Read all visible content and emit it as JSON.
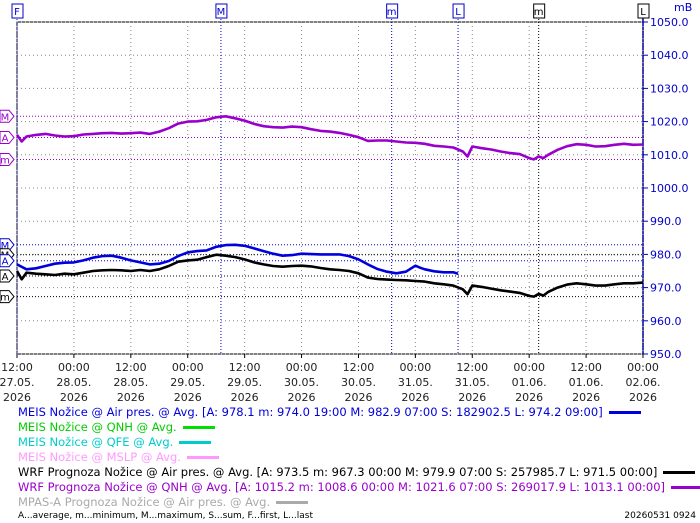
{
  "chart_data": {
    "type": "line",
    "unit_label": "mB",
    "ylim": [
      950,
      1050
    ],
    "yticks": [
      "950.0",
      "960.0",
      "970.0",
      "980.0",
      "990.0",
      "1000.0",
      "1010.0",
      "1020.0",
      "1030.0",
      "1040.0",
      "1050.0"
    ],
    "xticks": [
      {
        "t": 0,
        "time": "12:00",
        "date": "27.05."
      },
      {
        "t": 12,
        "time": "00:00",
        "date": "28.05."
      },
      {
        "t": 24,
        "time": "12:00",
        "date": "28.05."
      },
      {
        "t": 36,
        "time": "00:00",
        "date": "29.05."
      },
      {
        "t": 48,
        "time": "12:00",
        "date": "29.05."
      },
      {
        "t": 60,
        "time": "00:00",
        "date": "30.05."
      },
      {
        "t": 72,
        "time": "12:00",
        "date": "30.05."
      },
      {
        "t": 84,
        "time": "00:00",
        "date": "31.05."
      },
      {
        "t": 96,
        "time": "12:00",
        "date": "31.05."
      },
      {
        "t": 108,
        "time": "00:00",
        "date": "01.06."
      },
      {
        "t": 120,
        "time": "12:00",
        "date": "01.06."
      },
      {
        "t": 132,
        "time": "00:00",
        "date": "02.06."
      }
    ],
    "xtick_year": "2026",
    "top_markers": [
      {
        "label": "F",
        "t": 0,
        "color": "#0000cc"
      },
      {
        "label": "M",
        "t": 43,
        "color": "#0000cc"
      },
      {
        "label": "m",
        "t": 79,
        "color": "#0000cc"
      },
      {
        "label": "L",
        "t": 93,
        "color": "#0000cc"
      },
      {
        "label": "m",
        "t": 110,
        "color": "#000000"
      },
      {
        "label": "L",
        "t": 132,
        "color": "#000000"
      }
    ],
    "left_markers": [
      {
        "label": "M",
        "value": 1021.6,
        "color": "#9900cc"
      },
      {
        "label": "A",
        "value": 1015.2,
        "color": "#9900cc"
      },
      {
        "label": "m",
        "value": 1008.6,
        "color": "#9900cc"
      },
      {
        "label": "M",
        "value": 982.9,
        "color": "#0000cc"
      },
      {
        "label": "M",
        "value": 979.9,
        "color": "#000000"
      },
      {
        "label": "A",
        "value": 978.1,
        "color": "#0000cc"
      },
      {
        "label": "A",
        "value": 973.5,
        "color": "#000000"
      },
      {
        "label": "m",
        "value": 967.3,
        "color": "#000000"
      }
    ],
    "series": [
      {
        "name": "MEIS Nožice @ Air pres. @ Avg.",
        "color": "#0000dd",
        "points": [
          [
            0,
            977.0
          ],
          [
            2,
            975.5
          ],
          [
            4,
            975.8
          ],
          [
            6,
            976.5
          ],
          [
            8,
            977.2
          ],
          [
            10,
            977.5
          ],
          [
            12,
            977.6
          ],
          [
            14,
            978.2
          ],
          [
            16,
            979.0
          ],
          [
            18,
            979.5
          ],
          [
            20,
            979.6
          ],
          [
            22,
            979.0
          ],
          [
            24,
            978.2
          ],
          [
            26,
            977.6
          ],
          [
            28,
            977.0
          ],
          [
            30,
            977.2
          ],
          [
            32,
            978.0
          ],
          [
            34,
            979.5
          ],
          [
            36,
            980.6
          ],
          [
            38,
            981.0
          ],
          [
            40,
            981.2
          ],
          [
            42,
            982.3
          ],
          [
            44,
            982.8
          ],
          [
            46,
            982.9
          ],
          [
            48,
            982.6
          ],
          [
            50,
            981.8
          ],
          [
            52,
            981.0
          ],
          [
            54,
            980.2
          ],
          [
            56,
            979.6
          ],
          [
            58,
            979.8
          ],
          [
            60,
            980.2
          ],
          [
            62,
            980.1
          ],
          [
            64,
            980.0
          ],
          [
            66,
            980.0
          ],
          [
            68,
            980.0
          ],
          [
            70,
            979.5
          ],
          [
            72,
            978.5
          ],
          [
            74,
            977.0
          ],
          [
            76,
            975.6
          ],
          [
            78,
            974.8
          ],
          [
            80,
            974.3
          ],
          [
            82,
            974.8
          ],
          [
            84,
            976.6
          ],
          [
            85,
            976.0
          ],
          [
            86,
            975.5
          ],
          [
            88,
            974.9
          ],
          [
            90,
            974.6
          ],
          [
            92,
            974.6
          ],
          [
            93,
            974.2
          ]
        ]
      },
      {
        "name": "MEIS Nožice @ QNH @ Avg.",
        "color": "#00cc00",
        "points": []
      },
      {
        "name": "MEIS Nožice @ QFE @ Avg.",
        "color": "#00cccc",
        "points": []
      },
      {
        "name": "MEIS Nožice @ MSLP @ Avg.",
        "color": "#ff99ff",
        "points": []
      },
      {
        "name": "WRF Prognoza Nožice @ Air pres. @ Avg.",
        "color": "#000000",
        "points": [
          [
            0,
            975.0
          ],
          [
            1,
            972.5
          ],
          [
            2,
            974.5
          ],
          [
            4,
            974.2
          ],
          [
            6,
            974.0
          ],
          [
            8,
            973.8
          ],
          [
            10,
            974.2
          ],
          [
            12,
            974.0
          ],
          [
            14,
            974.5
          ],
          [
            16,
            975.0
          ],
          [
            18,
            975.2
          ],
          [
            20,
            975.3
          ],
          [
            22,
            975.2
          ],
          [
            24,
            975.0
          ],
          [
            26,
            975.3
          ],
          [
            28,
            975.0
          ],
          [
            30,
            975.5
          ],
          [
            32,
            976.5
          ],
          [
            34,
            977.8
          ],
          [
            36,
            978.2
          ],
          [
            38,
            978.4
          ],
          [
            40,
            979.2
          ],
          [
            42,
            979.9
          ],
          [
            44,
            979.6
          ],
          [
            46,
            979.2
          ],
          [
            48,
            978.5
          ],
          [
            50,
            977.6
          ],
          [
            52,
            977.0
          ],
          [
            54,
            976.5
          ],
          [
            56,
            976.3
          ],
          [
            58,
            976.5
          ],
          [
            60,
            976.6
          ],
          [
            62,
            976.4
          ],
          [
            64,
            975.9
          ],
          [
            66,
            975.5
          ],
          [
            68,
            975.3
          ],
          [
            70,
            975.0
          ],
          [
            72,
            974.3
          ],
          [
            74,
            973.0
          ],
          [
            76,
            972.6
          ],
          [
            78,
            972.4
          ],
          [
            80,
            972.3
          ],
          [
            82,
            972.2
          ],
          [
            84,
            972.0
          ],
          [
            86,
            971.8
          ],
          [
            88,
            971.3
          ],
          [
            90,
            971.0
          ],
          [
            92,
            970.6
          ],
          [
            94,
            969.5
          ],
          [
            95,
            968.0
          ],
          [
            96,
            970.6
          ],
          [
            98,
            970.2
          ],
          [
            100,
            969.7
          ],
          [
            102,
            969.2
          ],
          [
            104,
            968.8
          ],
          [
            106,
            968.4
          ],
          [
            108,
            967.5
          ],
          [
            109,
            967.3
          ],
          [
            110,
            968.1
          ],
          [
            111,
            967.6
          ],
          [
            112,
            968.7
          ],
          [
            114,
            970.0
          ],
          [
            116,
            970.9
          ],
          [
            118,
            971.3
          ],
          [
            120,
            971.0
          ],
          [
            122,
            970.6
          ],
          [
            124,
            970.6
          ],
          [
            126,
            971.0
          ],
          [
            128,
            971.3
          ],
          [
            130,
            971.3
          ],
          [
            132,
            971.5
          ]
        ]
      },
      {
        "name": "WRF Prognoza Nožice @ QNH @ Avg.",
        "color": "#9900cc",
        "points": [
          [
            0,
            1016.0
          ],
          [
            1,
            1014.0
          ],
          [
            2,
            1015.5
          ],
          [
            4,
            1016.0
          ],
          [
            6,
            1016.3
          ],
          [
            8,
            1015.8
          ],
          [
            10,
            1015.5
          ],
          [
            12,
            1015.6
          ],
          [
            14,
            1016.1
          ],
          [
            16,
            1016.3
          ],
          [
            18,
            1016.5
          ],
          [
            20,
            1016.6
          ],
          [
            22,
            1016.4
          ],
          [
            24,
            1016.5
          ],
          [
            26,
            1016.7
          ],
          [
            28,
            1016.3
          ],
          [
            30,
            1017.0
          ],
          [
            32,
            1018.0
          ],
          [
            34,
            1019.4
          ],
          [
            36,
            1020.0
          ],
          [
            38,
            1020.1
          ],
          [
            40,
            1020.5
          ],
          [
            42,
            1021.3
          ],
          [
            44,
            1021.6
          ],
          [
            46,
            1021.0
          ],
          [
            48,
            1020.3
          ],
          [
            50,
            1019.3
          ],
          [
            52,
            1018.6
          ],
          [
            54,
            1018.3
          ],
          [
            56,
            1018.2
          ],
          [
            58,
            1018.5
          ],
          [
            60,
            1018.3
          ],
          [
            62,
            1017.7
          ],
          [
            64,
            1017.2
          ],
          [
            66,
            1017.0
          ],
          [
            68,
            1016.6
          ],
          [
            70,
            1016.0
          ],
          [
            72,
            1015.3
          ],
          [
            74,
            1014.2
          ],
          [
            76,
            1014.3
          ],
          [
            78,
            1014.3
          ],
          [
            80,
            1014.0
          ],
          [
            82,
            1013.7
          ],
          [
            84,
            1013.6
          ],
          [
            86,
            1013.3
          ],
          [
            88,
            1012.7
          ],
          [
            90,
            1012.5
          ],
          [
            92,
            1012.2
          ],
          [
            94,
            1011.0
          ],
          [
            95,
            1009.5
          ],
          [
            96,
            1012.5
          ],
          [
            98,
            1012.0
          ],
          [
            100,
            1011.6
          ],
          [
            102,
            1011.0
          ],
          [
            104,
            1010.5
          ],
          [
            106,
            1010.2
          ],
          [
            108,
            1009.0
          ],
          [
            109,
            1008.6
          ],
          [
            110,
            1009.5
          ],
          [
            111,
            1009.0
          ],
          [
            112,
            1010.0
          ],
          [
            114,
            1011.5
          ],
          [
            116,
            1012.6
          ],
          [
            118,
            1013.2
          ],
          [
            120,
            1013.0
          ],
          [
            122,
            1012.5
          ],
          [
            124,
            1012.6
          ],
          [
            126,
            1013.0
          ],
          [
            128,
            1013.3
          ],
          [
            130,
            1013.0
          ],
          [
            132,
            1013.1
          ]
        ]
      },
      {
        "name": "MPAS-A Prognoza Nožice @ Air pres. @ Avg.",
        "color": "#aaaaaa",
        "points": []
      }
    ]
  },
  "legend": [
    {
      "name": "MEIS Nožice @ Air pres. @ Avg.",
      "stats": "[A: 978.1 m: 974.0 19:00 M: 982.9 07:00 S: 182902.5 L: 974.2 09:00]",
      "color": "#0000dd",
      "swatch": "#0000dd"
    },
    {
      "name": "MEIS Nožice @ QNH @ Avg.",
      "stats": "",
      "color": "#00cc00",
      "swatch": "#00dd00"
    },
    {
      "name": "MEIS Nožice @ QFE @ Avg.",
      "stats": "",
      "color": "#00cccc",
      "swatch": "#00cccc"
    },
    {
      "name": "MEIS Nožice @ MSLP @ Avg.",
      "stats": "",
      "color": "#ff99ff",
      "swatch": "#ff99ff"
    },
    {
      "name": "WRF Prognoza Nožice @ Air pres. @ Avg.",
      "stats": "[A: 973.5 m: 967.3 00:00 M: 979.9 07:00 S: 257985.7 L: 971.5 00:00]",
      "color": "#000000",
      "swatch": "#000000"
    },
    {
      "name": "WRF Prognoza Nožice @ QNH @ Avg.",
      "stats": "[A: 1015.2 m: 1008.6 00:00 M: 1021.6 07:00 S: 269017.9 L: 1013.1 00:00]",
      "color": "#9900cc",
      "swatch": "#9900cc"
    },
    {
      "name": "MPAS-A Prognoza Nožice @ Air pres. @ Avg.",
      "stats": "",
      "color": "#aaaaaa",
      "swatch": "#aaaaaa"
    }
  ],
  "footer": {
    "abbreviations": "A...average, m...minimum, M...maximum, S...sum, F...first, L...last",
    "stamp": "20260531 0924"
  }
}
